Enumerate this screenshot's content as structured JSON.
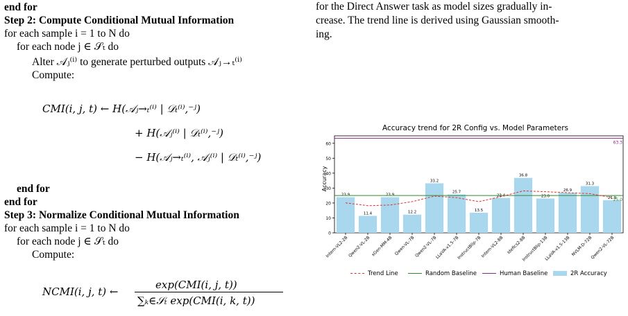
{
  "algorithm": {
    "end_for_top": "end for",
    "step2_title": "Step 2: Compute Conditional Mutual Information",
    "for_each_sample_a": "for each sample i = 1 to N do",
    "for_each_node_a": "for each node j ∈ 𝒮ₜ do",
    "alter_line": "Alter 𝒜ⱼ⁽ⁱ⁾ to generate perturbed outputs 𝒜ⱼ→ₜ⁽ⁱ⁾",
    "compute_a": "Compute:",
    "cmi_line1": "CMI(i, j, t) ← H(𝒜ⱼ→ₜ⁽ⁱ⁾ | 𝒟ₜ⁽ⁱ⁾,⁻ʲ)",
    "cmi_line2": "+ H(𝒜ⱼ⁽ⁱ⁾ | 𝒟ₜ⁽ⁱ⁾,⁻ʲ)",
    "cmi_line3": "− H(𝒜ⱼ→ₜ⁽ⁱ⁾, 𝒜ⱼ⁽ⁱ⁾ | 𝒟ₜ⁽ⁱ⁾,⁻ʲ)",
    "end_for_inner": "end for",
    "end_for_outer": "end for",
    "step3_title": "Step 3: Normalize Conditional Mutual Information",
    "for_each_sample_b": "for each sample i = 1 to N do",
    "for_each_node_b": "for each node j ∈ 𝒮ₜ do",
    "compute_b": "Compute:",
    "ncmi_lhs": "NCMI(i, j, t) ←",
    "ncmi_num": "exp(CMI(i, j, t))",
    "ncmi_den": "∑ₖ∈𝒮ₜ exp(CMI(i, k, t))"
  },
  "paragraph": {
    "line1": "for the Direct Answer task as model sizes gradually in-",
    "line2": "crease. The trend line is derived using Gaussian smooth-",
    "line3": "ing."
  },
  "chart_data": {
    "type": "bar",
    "title": "Accuracy trend for 2R Config vs. Model Parameters",
    "xlabel": "",
    "ylabel": "Accuracy",
    "ylim": [
      0,
      65
    ],
    "yticks": [
      0,
      10,
      20,
      30,
      40,
      50,
      60
    ],
    "categories": [
      "Intern-VL2-2B",
      "Qwen2-VL-2B",
      "xGen-MM-4B",
      "Qwen-VL-7B",
      "Qwen2-VL-7B",
      "LLaVA-v1.5-7B",
      "InstructBlip-7B",
      "Intern-VL2-8B",
      "Idefics2-8B",
      "InstructBlip-13B",
      "LLaVA-v1.5-13B",
      "NVLM-D-72B",
      "Qwen2-VL-72B"
    ],
    "series": [
      {
        "name": "2R Accuracy",
        "values": [
          23.9,
          11.4,
          23.9,
          12.2,
          33.2,
          25.7,
          13.5,
          23.4,
          36.8,
          23.0,
          26.9,
          31.3,
          21.9
        ],
        "color": "#a9d8ee"
      },
      {
        "name": "Trend Line",
        "values": [
          20.1,
          18.2,
          18.6,
          20.9,
          24.6,
          23.6,
          20.9,
          24.3,
          28.1,
          27.6,
          26.9,
          26.3,
          23.6
        ],
        "color": "#e0302c"
      }
    ],
    "reference_lines": [
      {
        "name": "Random Baseline",
        "value": 25.0,
        "label": "25.0",
        "color": "#2e8b2e"
      },
      {
        "name": "Human Baseline",
        "value": 63.3,
        "label": "63.3",
        "color": "#8b2a8b"
      }
    ],
    "data_labels": [
      "23.9",
      "11.4",
      "23.9",
      "12.2",
      "33.2",
      "25.7",
      "13.5",
      "23.4",
      "36.8",
      "23.0",
      "26.9",
      "31.3",
      "21.9"
    ],
    "legend": {
      "placement": "bottom",
      "entries": [
        "Trend Line",
        "Random Baseline",
        "Human Baseline",
        "2R Accuracy"
      ]
    },
    "grid": false
  }
}
